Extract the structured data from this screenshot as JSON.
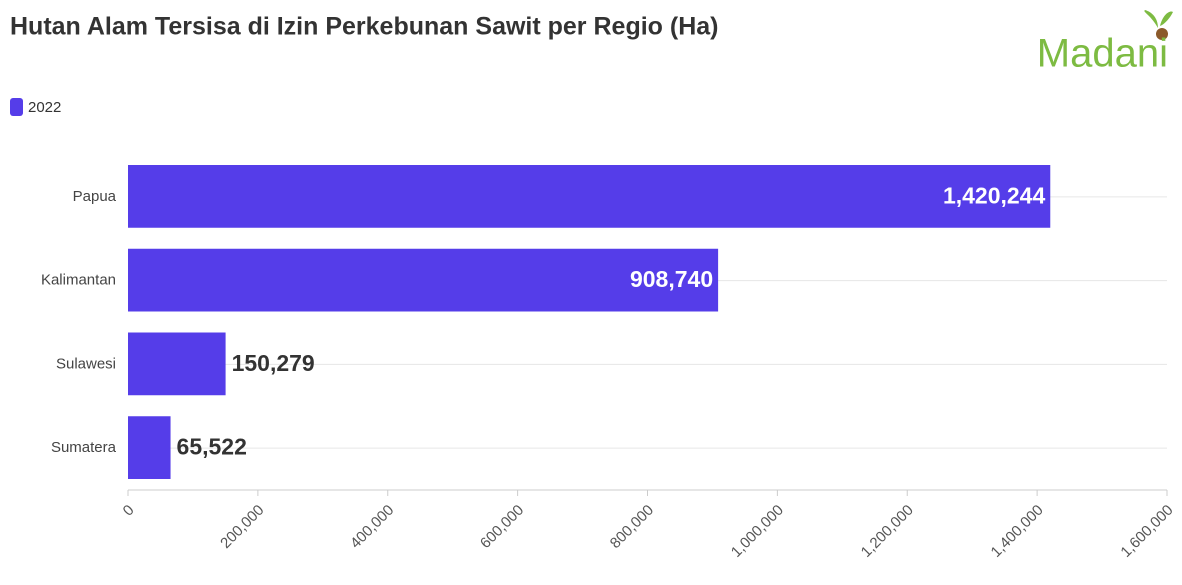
{
  "logo": "Madani",
  "chart_data": {
    "type": "bar",
    "orientation": "horizontal",
    "title": "Hutan Alam Tersisa di Izin Perkebunan Sawit per Regio (Ha)",
    "categories": [
      "Papua",
      "Kalimantan",
      "Sulawesi",
      "Sumatera"
    ],
    "series": [
      {
        "name": "2022",
        "color": "#553de9",
        "values": [
          1420244,
          908740,
          150279,
          65522
        ],
        "value_labels": [
          "1,420,244",
          "908,740",
          "150,279",
          "65,522"
        ]
      }
    ],
    "xlim": [
      0,
      1600000
    ],
    "xticks": [
      0,
      {
        "value": 200000,
        "label": "200,000"
      },
      {
        "value": 400000,
        "label": "400,000"
      },
      {
        "value": 600000,
        "label": "600,000"
      },
      {
        "value": 800000,
        "label": "800,000"
      },
      {
        "value": 1000000,
        "label": "1,000,000"
      },
      {
        "value": 1200000,
        "label": "1,200,000"
      },
      {
        "value": 1400000,
        "label": "1,400,000"
      },
      {
        "value": 1600000,
        "label": "1,600,000"
      }
    ],
    "grid": true,
    "legend": "top-left"
  }
}
